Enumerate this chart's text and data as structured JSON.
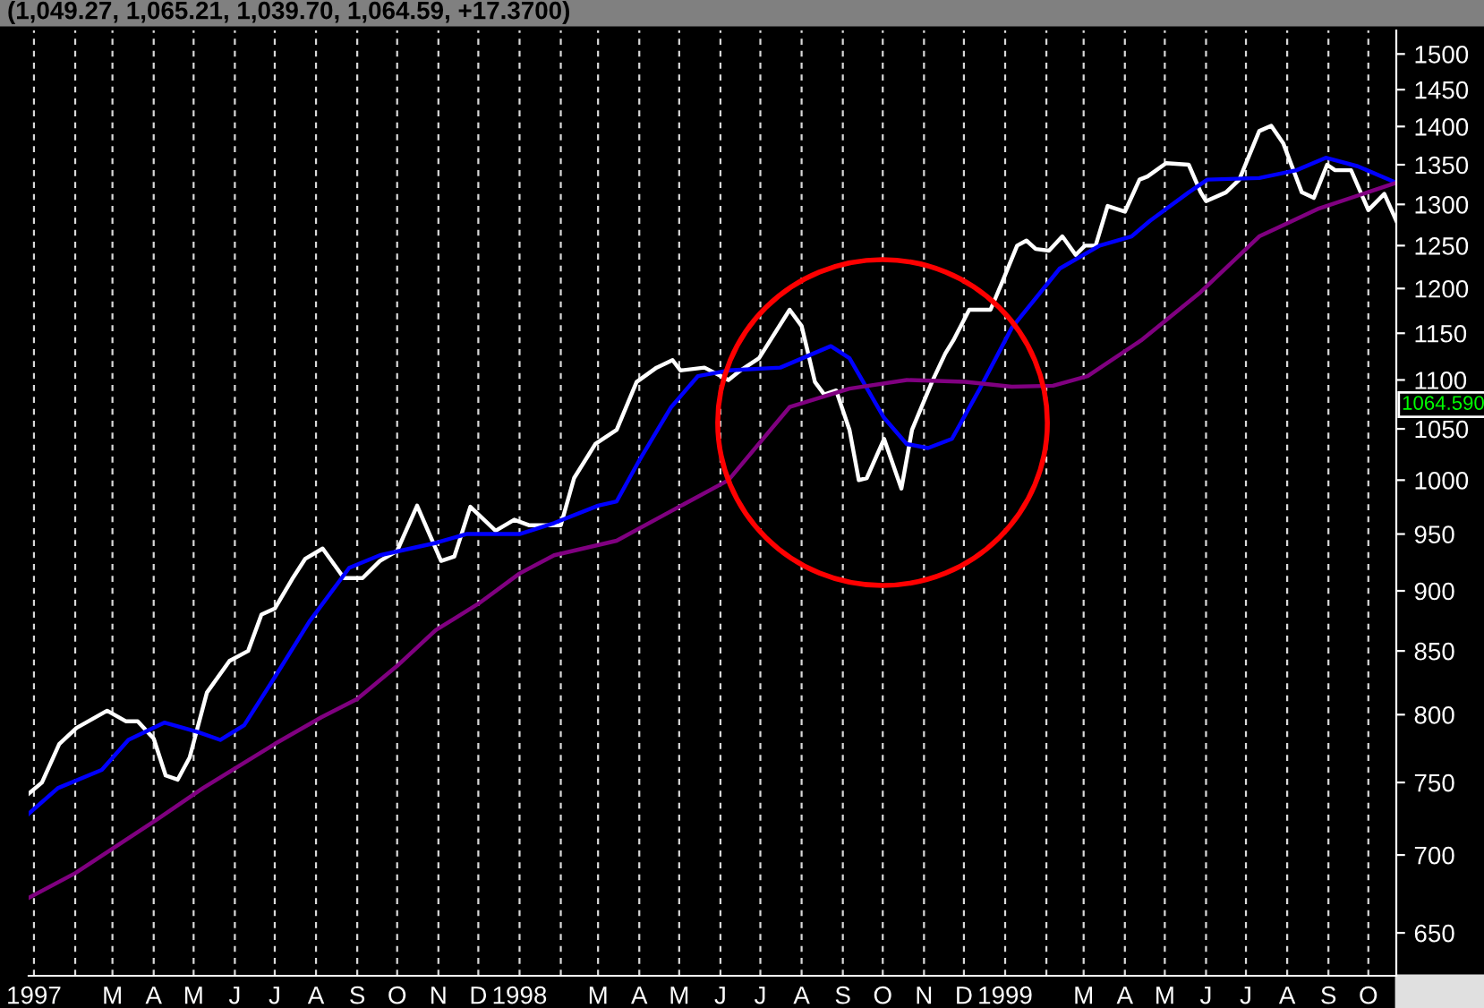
{
  "chart_data": {
    "type": "line",
    "title": "(1,049.27, 1,065.21, 1,039.70, 1,064.59, +17.3700)",
    "log": true,
    "grid": "x",
    "marker": "none",
    "line_style": "solid",
    "xlim": [
      "1996-12-28",
      "1999-10-22"
    ],
    "xticks": [
      {
        "value": "1997-01-01",
        "label": "1997"
      },
      {
        "value": "1997-02-01",
        "label": null
      },
      {
        "value": "1997-03-01",
        "label": "M"
      },
      {
        "value": "1997-04-01",
        "label": "A"
      },
      {
        "value": "1997-05-01",
        "label": "M"
      },
      {
        "value": "1997-06-01",
        "label": "J"
      },
      {
        "value": "1997-07-01",
        "label": "J"
      },
      {
        "value": "1997-08-01",
        "label": "A"
      },
      {
        "value": "1997-09-01",
        "label": "S"
      },
      {
        "value": "1997-10-01",
        "label": "O"
      },
      {
        "value": "1997-11-01",
        "label": "N"
      },
      {
        "value": "1997-12-01",
        "label": "D"
      },
      {
        "value": "1998-01-01",
        "label": "1998"
      },
      {
        "value": "1998-02-01",
        "label": null
      },
      {
        "value": "1998-03-01",
        "label": "M"
      },
      {
        "value": "1998-04-01",
        "label": "A"
      },
      {
        "value": "1998-05-01",
        "label": "M"
      },
      {
        "value": "1998-06-01",
        "label": "J"
      },
      {
        "value": "1998-07-01",
        "label": "J"
      },
      {
        "value": "1998-08-01",
        "label": "A"
      },
      {
        "value": "1998-09-01",
        "label": "S"
      },
      {
        "value": "1998-10-01",
        "label": "O"
      },
      {
        "value": "1998-11-01",
        "label": "N"
      },
      {
        "value": "1998-12-01",
        "label": "D"
      },
      {
        "value": "1999-01-01",
        "label": "1999"
      },
      {
        "value": "1999-02-01",
        "label": null
      },
      {
        "value": "1999-03-01",
        "label": "M"
      },
      {
        "value": "1999-04-01",
        "label": "A"
      },
      {
        "value": "1999-05-01",
        "label": "M"
      },
      {
        "value": "1999-06-01",
        "label": "J"
      },
      {
        "value": "1999-07-01",
        "label": "J"
      },
      {
        "value": "1999-08-01",
        "label": "A"
      },
      {
        "value": "1999-09-01",
        "label": "S"
      },
      {
        "value": "1999-10-01",
        "label": "O"
      }
    ],
    "ylim": [
      624,
      1534
    ],
    "yticks": [
      650,
      700,
      750,
      800,
      850,
      900,
      950,
      1000,
      1050,
      1100,
      1150,
      1200,
      1250,
      1300,
      1350,
      1400,
      1450,
      1500
    ],
    "annotations": [
      "1064.590"
    ],
    "series": [
      {
        "color": "#ffffff",
        "x": [
          "1996-12-28",
          "1997-01-07",
          "1997-01-20",
          "1997-02-02",
          "1997-02-25",
          "1997-03-11",
          "1997-03-20",
          "1997-04-01",
          "1997-04-10",
          "1997-04-19",
          "1997-04-28",
          "1997-05-11",
          "1997-05-28",
          "1997-06-11",
          "1997-06-21",
          "1997-07-01",
          "1997-07-14",
          "1997-07-24",
          "1997-08-06",
          "1997-08-22",
          "1997-09-05",
          "1997-09-18",
          "1997-10-01",
          "1997-10-16",
          "1997-11-03",
          "1997-11-13",
          "1997-11-25",
          "1997-12-14",
          "1997-12-28",
          "1998-01-08",
          "1998-02-01",
          "1998-02-11",
          "1998-02-27",
          "1998-03-15",
          "1998-03-30",
          "1998-04-14",
          "1998-04-26",
          "1998-05-02",
          "1998-05-20",
          "1998-06-07",
          "1998-06-16",
          "1998-06-30",
          "1998-07-23",
          "1998-08-01",
          "1998-08-11",
          "1998-08-18",
          "1998-08-27",
          "1998-09-06",
          "1998-09-13",
          "1998-09-19",
          "1998-10-02",
          "1998-10-15",
          "1998-10-23",
          "1998-11-07",
          "1998-11-17",
          "1998-11-23",
          "1998-12-05",
          "1998-12-21",
          "1998-12-30",
          "1999-01-10",
          "1999-01-17",
          "1999-01-24",
          "1999-02-03",
          "1999-02-13",
          "1999-02-23",
          "1999-03-02",
          "1999-03-10",
          "1999-03-19",
          "1999-04-01",
          "1999-04-12",
          "1999-04-18",
          "1999-05-02",
          "1999-05-19",
          "1999-05-28",
          "1999-06-01",
          "1999-06-16",
          "1999-06-26",
          "1999-07-11",
          "1999-07-20",
          "1999-07-29",
          "1999-08-12",
          "1999-08-21",
          "1999-08-31",
          "1999-09-06",
          "1999-09-18",
          "1999-10-01",
          "1999-10-13",
          "1999-10-22"
        ],
        "values": [
          742,
          750,
          778,
          790,
          803,
          795,
          795,
          782,
          755,
          752,
          768,
          817,
          842,
          850,
          880,
          885,
          910,
          928,
          937,
          911,
          911,
          926,
          935,
          976,
          926,
          930,
          975,
          953,
          963,
          958,
          958,
          1002,
          1035,
          1049,
          1098,
          1113,
          1121,
          1110,
          1113,
          1100,
          1110,
          1123,
          1176,
          1158,
          1098,
          1085,
          1089,
          1049,
          1000,
          1002,
          1040,
          992,
          1049,
          1098,
          1128,
          1142,
          1176,
          1176,
          1208,
          1250,
          1256,
          1246,
          1244,
          1261,
          1239,
          1250,
          1250,
          1298,
          1291,
          1331,
          1335,
          1352,
          1350,
          1315,
          1304,
          1315,
          1331,
          1394,
          1401,
          1378,
          1315,
          1308,
          1350,
          1343,
          1343,
          1293,
          1313,
          1280
        ]
      },
      {
        "color": "#0000ff",
        "x": [
          "1996-12-28",
          "1997-01-19",
          "1997-02-21",
          "1997-03-13",
          "1997-04-09",
          "1997-05-04",
          "1997-05-21",
          "1997-06-08",
          "1997-07-01",
          "1997-07-27",
          "1997-08-26",
          "1997-09-18",
          "1997-10-30",
          "1997-11-22",
          "1998-01-01",
          "1998-01-27",
          "1998-03-01",
          "1998-03-15",
          "1998-04-01",
          "1998-04-25",
          "1998-05-15",
          "1998-06-07",
          "1998-07-16",
          "1998-08-23",
          "1998-09-06",
          "1998-10-02",
          "1998-10-19",
          "1998-11-04",
          "1998-11-22",
          "1998-12-13",
          "1999-01-06",
          "1999-02-11",
          "1999-03-13",
          "1999-04-06",
          "1999-04-20",
          "1999-05-19",
          "1999-06-02",
          "1999-07-11",
          "1999-08-08",
          "1999-08-30",
          "1999-09-23",
          "1999-10-22"
        ],
        "values": [
          728,
          746,
          759,
          781,
          794,
          787,
          781,
          792,
          829,
          874,
          920,
          931,
          942,
          950,
          950,
          960,
          976,
          980,
          1019,
          1072,
          1104,
          1110,
          1113,
          1136,
          1123,
          1061,
          1035,
          1031,
          1040,
          1091,
          1156,
          1223,
          1250,
          1261,
          1280,
          1315,
          1331,
          1333,
          1343,
          1359,
          1348,
          1327
        ]
      },
      {
        "color": "#800080",
        "x": [
          "1996-12-28",
          "1997-02-01",
          "1997-03-04",
          "1997-04-05",
          "1997-05-08",
          "1997-07-01",
          "1997-08-05",
          "1997-09-01",
          "1997-10-01",
          "1997-10-30",
          "1997-12-01",
          "1998-01-01",
          "1998-01-27",
          "1998-03-15",
          "1998-04-25",
          "1998-06-07",
          "1998-07-23",
          "1998-09-06",
          "1998-10-19",
          "1998-12-02",
          "1999-01-06",
          "1999-02-06",
          "1999-03-04",
          "1999-04-13",
          "1999-05-28",
          "1999-07-11",
          "1999-08-25",
          "1999-10-22"
        ],
        "values": [
          672,
          688,
          706,
          725,
          746,
          778,
          798,
          812,
          838,
          867,
          889,
          915,
          931,
          944,
          971,
          1000,
          1072,
          1091,
          1100,
          1098,
          1093,
          1094,
          1104,
          1142,
          1196,
          1261,
          1295,
          1327
        ]
      }
    ]
  }
}
